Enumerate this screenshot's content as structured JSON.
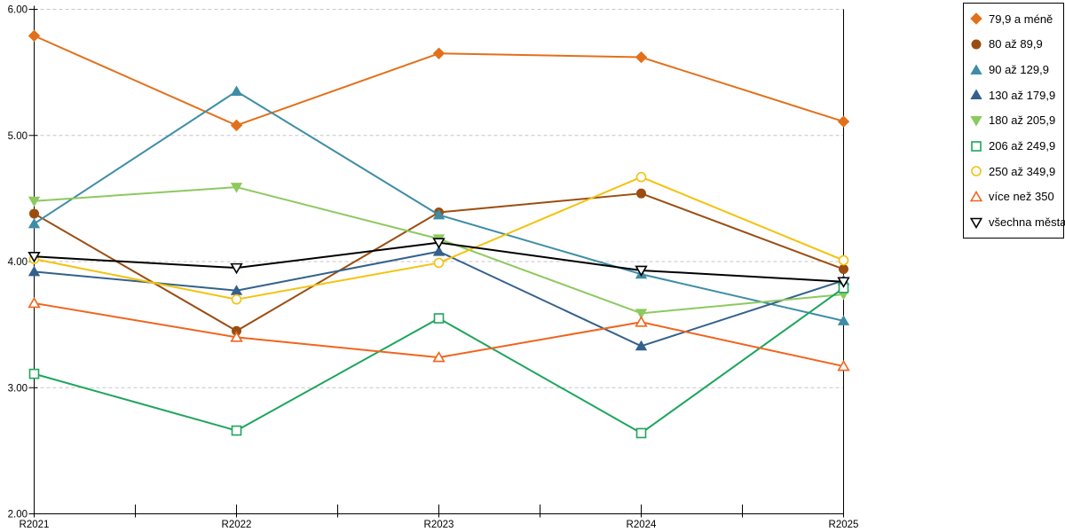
{
  "chart": {
    "background_color": "#ffffff",
    "grid_color": "#c6c6c6",
    "axis_color": "#000000",
    "tick_label_color": "#000000"
  },
  "chart_data": {
    "type": "line",
    "title": "",
    "xlabel": "",
    "ylabel": "",
    "x": [
      "R2021",
      "R2022",
      "R2023",
      "R2024",
      "R2025"
    ],
    "ylim": [
      2.0,
      6.0
    ],
    "y_ticks": [
      6.0,
      5.0,
      4.0,
      3.0,
      2.0
    ],
    "y_tick_labels": [
      "6.00",
      "5.00",
      "4.00",
      "3.00",
      "2.00"
    ],
    "grid": "horizontal-dashed",
    "legend_position": "top-right",
    "legend_border": "#000000",
    "series": [
      {
        "name": "79,9 a méně",
        "color": "#e2701b",
        "marker": "diamond",
        "fill": "solid",
        "values": [
          5.79,
          5.08,
          5.65,
          5.62,
          5.11
        ]
      },
      {
        "name": "80 až 89,9",
        "color": "#9b4d10",
        "marker": "circle",
        "fill": "solid",
        "values": [
          4.38,
          3.45,
          4.39,
          4.54,
          3.94
        ]
      },
      {
        "name": "90 až 129,9",
        "color": "#3e8da6",
        "marker": "triangle-up",
        "fill": "solid",
        "values": [
          4.3,
          5.35,
          4.37,
          3.9,
          3.53
        ]
      },
      {
        "name": "130 až 179,9",
        "color": "#33618c",
        "marker": "triangle-up",
        "fill": "solid",
        "values": [
          3.92,
          3.77,
          4.08,
          3.33,
          3.85
        ]
      },
      {
        "name": "180 až 205,9",
        "color": "#8cc95f",
        "marker": "triangle-down",
        "fill": "solid",
        "values": [
          4.48,
          4.59,
          4.18,
          3.59,
          3.74
        ]
      },
      {
        "name": "206 až 249,9",
        "color": "#1da55c",
        "marker": "square",
        "fill": "open",
        "values": [
          3.11,
          2.66,
          3.55,
          2.64,
          3.79
        ]
      },
      {
        "name": "250 až 349,9",
        "color": "#f4c20d",
        "marker": "circle",
        "fill": "open",
        "values": [
          4.02,
          3.7,
          3.99,
          4.67,
          4.01
        ]
      },
      {
        "name": "více než 350",
        "color": "#f0641e",
        "marker": "triangle-up",
        "fill": "open",
        "values": [
          3.67,
          3.4,
          3.24,
          3.52,
          3.17
        ]
      },
      {
        "name": "všechna města",
        "color": "#000000",
        "marker": "triangle-down",
        "fill": "open",
        "values": [
          4.04,
          3.95,
          4.15,
          3.93,
          3.84
        ]
      }
    ]
  }
}
